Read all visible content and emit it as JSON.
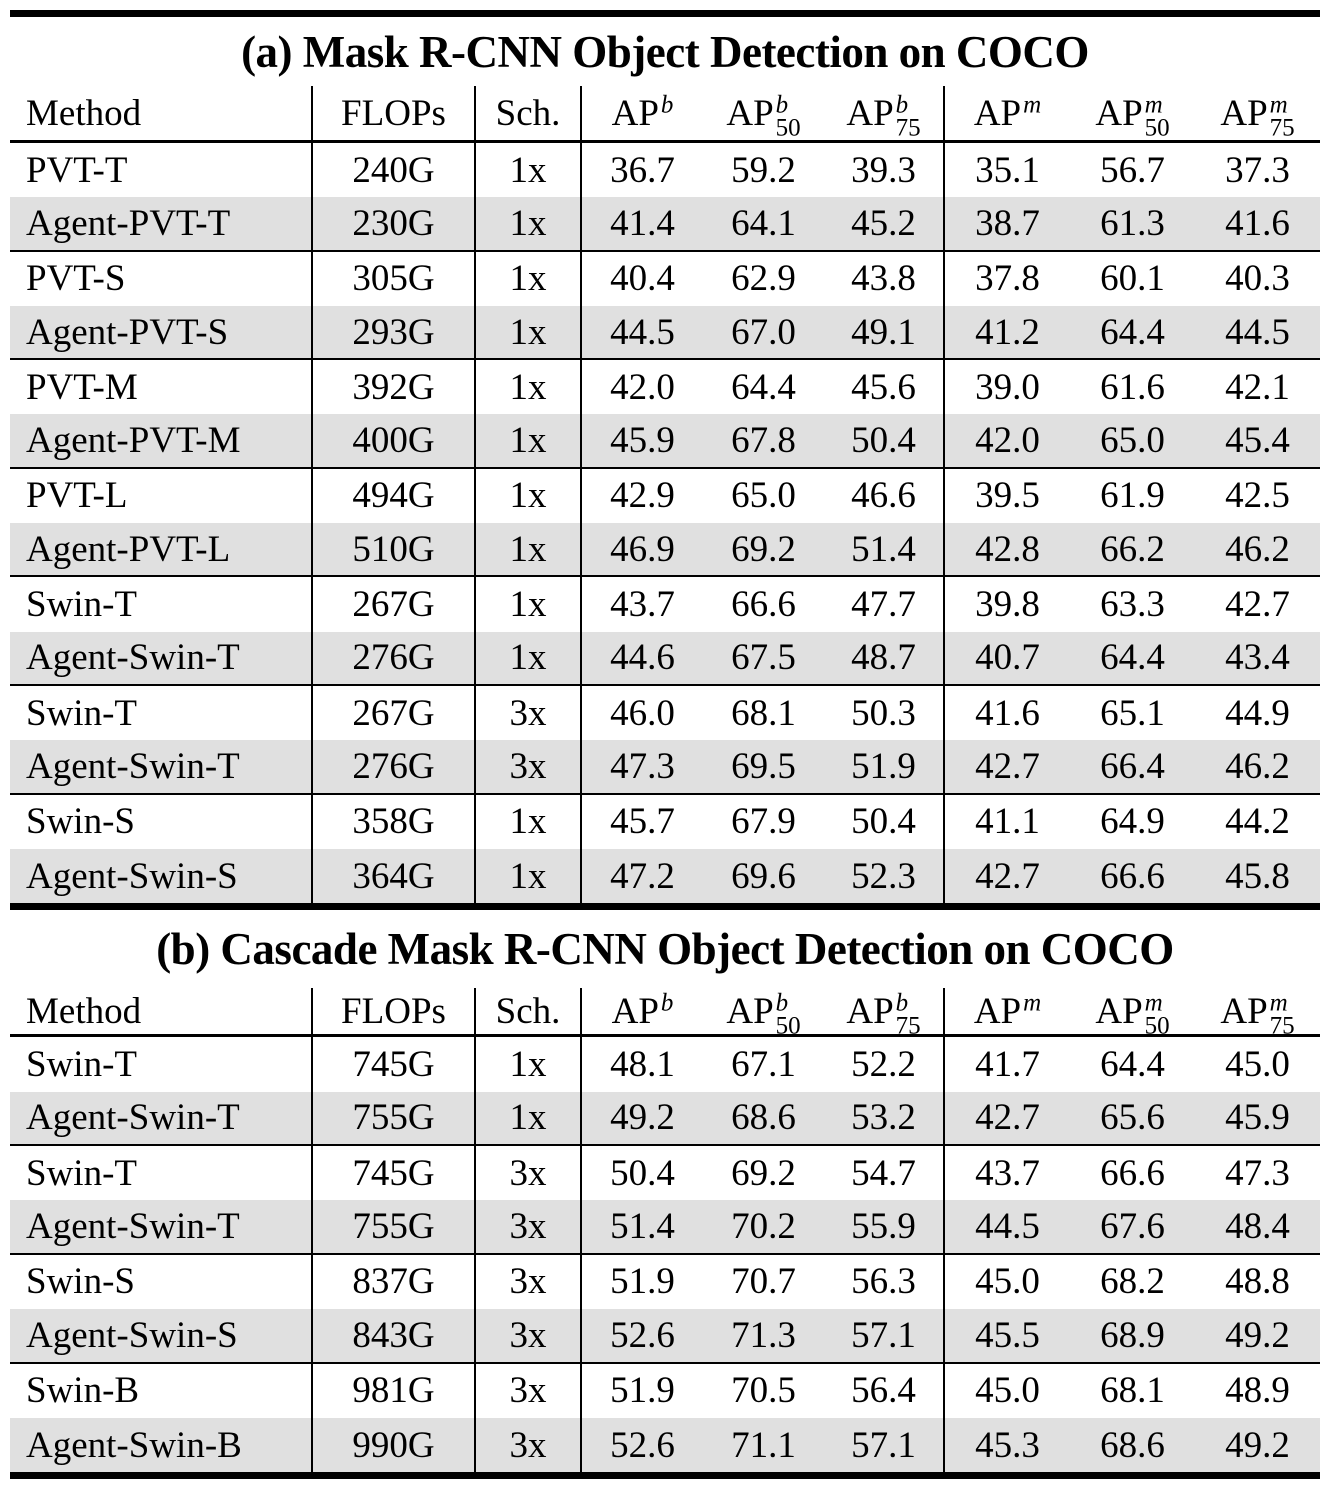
{
  "colors": {
    "text": "#000000",
    "background": "#ffffff",
    "row_highlight": "#e0e0e0",
    "rule": "#000000"
  },
  "tables": [
    {
      "title": "(a) Mask R-CNN Object Detection on COCO",
      "columns": [
        {
          "label": "Method"
        },
        {
          "label": "FLOPs"
        },
        {
          "label": "Sch."
        },
        {
          "base": "AP",
          "sup": "b",
          "sub": ""
        },
        {
          "base": "AP",
          "sup": "b",
          "sub": "50"
        },
        {
          "base": "AP",
          "sup": "b",
          "sub": "75"
        },
        {
          "base": "AP",
          "sup": "m",
          "sub": ""
        },
        {
          "base": "AP",
          "sup": "m",
          "sub": "50"
        },
        {
          "base": "AP",
          "sup": "m",
          "sub": "75"
        }
      ],
      "rows": [
        {
          "method": "PVT-T",
          "flops": "240G",
          "sch": "1x",
          "apb": "36.7",
          "apb50": "59.2",
          "apb75": "39.3",
          "apm": "35.1",
          "apm50": "56.7",
          "apm75": "37.3"
        },
        {
          "method": "Agent-PVT-T",
          "flops": "230G",
          "sch": "1x",
          "apb": "41.4",
          "apb50": "64.1",
          "apb75": "45.2",
          "apm": "38.7",
          "apm50": "61.3",
          "apm75": "41.6"
        },
        {
          "method": "PVT-S",
          "flops": "305G",
          "sch": "1x",
          "apb": "40.4",
          "apb50": "62.9",
          "apb75": "43.8",
          "apm": "37.8",
          "apm50": "60.1",
          "apm75": "40.3"
        },
        {
          "method": "Agent-PVT-S",
          "flops": "293G",
          "sch": "1x",
          "apb": "44.5",
          "apb50": "67.0",
          "apb75": "49.1",
          "apm": "41.2",
          "apm50": "64.4",
          "apm75": "44.5"
        },
        {
          "method": "PVT-M",
          "flops": "392G",
          "sch": "1x",
          "apb": "42.0",
          "apb50": "64.4",
          "apb75": "45.6",
          "apm": "39.0",
          "apm50": "61.6",
          "apm75": "42.1"
        },
        {
          "method": "Agent-PVT-M",
          "flops": "400G",
          "sch": "1x",
          "apb": "45.9",
          "apb50": "67.8",
          "apb75": "50.4",
          "apm": "42.0",
          "apm50": "65.0",
          "apm75": "45.4"
        },
        {
          "method": "PVT-L",
          "flops": "494G",
          "sch": "1x",
          "apb": "42.9",
          "apb50": "65.0",
          "apb75": "46.6",
          "apm": "39.5",
          "apm50": "61.9",
          "apm75": "42.5"
        },
        {
          "method": "Agent-PVT-L",
          "flops": "510G",
          "sch": "1x",
          "apb": "46.9",
          "apb50": "69.2",
          "apb75": "51.4",
          "apm": "42.8",
          "apm50": "66.2",
          "apm75": "46.2"
        },
        {
          "method": "Swin-T",
          "flops": "267G",
          "sch": "1x",
          "apb": "43.7",
          "apb50": "66.6",
          "apb75": "47.7",
          "apm": "39.8",
          "apm50": "63.3",
          "apm75": "42.7"
        },
        {
          "method": "Agent-Swin-T",
          "flops": "276G",
          "sch": "1x",
          "apb": "44.6",
          "apb50": "67.5",
          "apb75": "48.7",
          "apm": "40.7",
          "apm50": "64.4",
          "apm75": "43.4"
        },
        {
          "method": "Swin-T",
          "flops": "267G",
          "sch": "3x",
          "apb": "46.0",
          "apb50": "68.1",
          "apb75": "50.3",
          "apm": "41.6",
          "apm50": "65.1",
          "apm75": "44.9"
        },
        {
          "method": "Agent-Swin-T",
          "flops": "276G",
          "sch": "3x",
          "apb": "47.3",
          "apb50": "69.5",
          "apb75": "51.9",
          "apm": "42.7",
          "apm50": "66.4",
          "apm75": "46.2"
        },
        {
          "method": "Swin-S",
          "flops": "358G",
          "sch": "1x",
          "apb": "45.7",
          "apb50": "67.9",
          "apb75": "50.4",
          "apm": "41.1",
          "apm50": "64.9",
          "apm75": "44.2"
        },
        {
          "method": "Agent-Swin-S",
          "flops": "364G",
          "sch": "1x",
          "apb": "47.2",
          "apb50": "69.6",
          "apb75": "52.3",
          "apm": "42.7",
          "apm50": "66.6",
          "apm75": "45.8"
        }
      ]
    },
    {
      "title": "(b) Cascade Mask R-CNN Object Detection on COCO",
      "columns": [
        {
          "label": "Method"
        },
        {
          "label": "FLOPs"
        },
        {
          "label": "Sch."
        },
        {
          "base": "AP",
          "sup": "b",
          "sub": ""
        },
        {
          "base": "AP",
          "sup": "b",
          "sub": "50"
        },
        {
          "base": "AP",
          "sup": "b",
          "sub": "75"
        },
        {
          "base": "AP",
          "sup": "m",
          "sub": ""
        },
        {
          "base": "AP",
          "sup": "m",
          "sub": "50"
        },
        {
          "base": "AP",
          "sup": "m",
          "sub": "75"
        }
      ],
      "rows": [
        {
          "method": "Swin-T",
          "flops": "745G",
          "sch": "1x",
          "apb": "48.1",
          "apb50": "67.1",
          "apb75": "52.2",
          "apm": "41.7",
          "apm50": "64.4",
          "apm75": "45.0"
        },
        {
          "method": "Agent-Swin-T",
          "flops": "755G",
          "sch": "1x",
          "apb": "49.2",
          "apb50": "68.6",
          "apb75": "53.2",
          "apm": "42.7",
          "apm50": "65.6",
          "apm75": "45.9"
        },
        {
          "method": "Swin-T",
          "flops": "745G",
          "sch": "3x",
          "apb": "50.4",
          "apb50": "69.2",
          "apb75": "54.7",
          "apm": "43.7",
          "apm50": "66.6",
          "apm75": "47.3"
        },
        {
          "method": "Agent-Swin-T",
          "flops": "755G",
          "sch": "3x",
          "apb": "51.4",
          "apb50": "70.2",
          "apb75": "55.9",
          "apm": "44.5",
          "apm50": "67.6",
          "apm75": "48.4"
        },
        {
          "method": "Swin-S",
          "flops": "837G",
          "sch": "3x",
          "apb": "51.9",
          "apb50": "70.7",
          "apb75": "56.3",
          "apm": "45.0",
          "apm50": "68.2",
          "apm75": "48.8"
        },
        {
          "method": "Agent-Swin-S",
          "flops": "843G",
          "sch": "3x",
          "apb": "52.6",
          "apb50": "71.3",
          "apb75": "57.1",
          "apm": "45.5",
          "apm50": "68.9",
          "apm75": "49.2"
        },
        {
          "method": "Swin-B",
          "flops": "981G",
          "sch": "3x",
          "apb": "51.9",
          "apb50": "70.5",
          "apb75": "56.4",
          "apm": "45.0",
          "apm50": "68.1",
          "apm75": "48.9"
        },
        {
          "method": "Agent-Swin-B",
          "flops": "990G",
          "sch": "3x",
          "apb": "52.6",
          "apb50": "71.1",
          "apb75": "57.1",
          "apm": "45.3",
          "apm50": "68.6",
          "apm75": "49.2"
        }
      ]
    }
  ]
}
